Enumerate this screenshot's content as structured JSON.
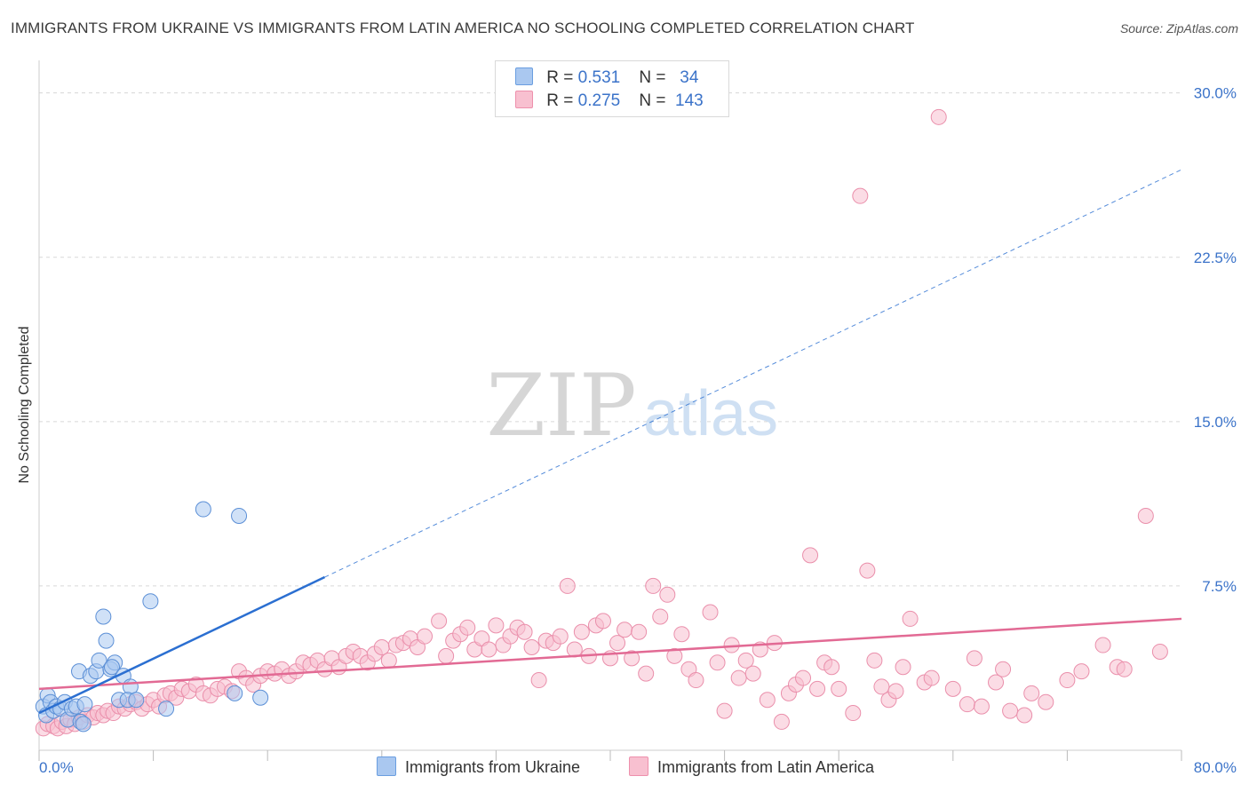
{
  "title": "IMMIGRANTS FROM UKRAINE VS IMMIGRANTS FROM LATIN AMERICA NO SCHOOLING COMPLETED CORRELATION CHART",
  "source": "Source: ZipAtlas.com",
  "watermark": {
    "zip": "ZIP",
    "atlas": "atlas"
  },
  "legend": {
    "rows": [
      {
        "r_label": "R =",
        "r_value": "0.531",
        "n_label": "N =",
        "n_value": "34",
        "color": "#aac8f0",
        "stroke": "#6a9ee0"
      },
      {
        "r_label": "R =",
        "r_value": "0.275",
        "n_label": "N =",
        "n_value": "143",
        "color": "#f8c0d0",
        "stroke": "#ee90ac"
      }
    ]
  },
  "colors": {
    "blue_fill": "#aac8f0",
    "blue_stroke": "#5b8fd6",
    "pink_fill": "#f8c0d0",
    "pink_stroke": "#ea8fab",
    "blue_line": "#2b6fd1",
    "pink_line": "#e26a94",
    "tick_label": "#3b73c9",
    "grid": "#d8d8d8"
  },
  "chart_data": {
    "type": "scatter",
    "title": "IMMIGRANTS FROM UKRAINE VS IMMIGRANTS FROM LATIN AMERICA NO SCHOOLING COMPLETED CORRELATION CHART",
    "xlabel": "",
    "ylabel": "No Schooling Completed",
    "xlim": [
      0,
      80
    ],
    "ylim": [
      0,
      31
    ],
    "x_tick_labels": [
      "0.0%",
      "80.0%"
    ],
    "y_ticks": [
      7.5,
      15.0,
      22.5,
      30.0
    ],
    "y_tick_labels": [
      "7.5%",
      "15.0%",
      "22.5%",
      "30.0%"
    ],
    "grid": true,
    "series": [
      {
        "name": "Immigrants from Ukraine",
        "R": 0.531,
        "N": 34,
        "trend": {
          "x0": 0,
          "y0": 1.7,
          "x1": 20,
          "y1": 7.9,
          "dash_to_x": 80,
          "dash_to_y": 26.5
        },
        "points": [
          [
            0.3,
            2.0
          ],
          [
            0.5,
            1.6
          ],
          [
            0.6,
            2.5
          ],
          [
            0.8,
            2.2
          ],
          [
            1.0,
            1.8
          ],
          [
            1.2,
            2.0
          ],
          [
            1.5,
            1.9
          ],
          [
            1.8,
            2.2
          ],
          [
            2.0,
            1.4
          ],
          [
            2.3,
            1.9
          ],
          [
            2.6,
            2.0
          ],
          [
            2.9,
            1.3
          ],
          [
            3.1,
            1.2
          ],
          [
            3.2,
            2.1
          ],
          [
            2.8,
            3.6
          ],
          [
            3.6,
            3.4
          ],
          [
            4.0,
            3.6
          ],
          [
            4.2,
            4.1
          ],
          [
            4.5,
            6.1
          ],
          [
            4.7,
            5.0
          ],
          [
            5.0,
            3.7
          ],
          [
            5.3,
            4.0
          ],
          [
            5.1,
            3.8
          ],
          [
            5.9,
            3.4
          ],
          [
            6.4,
            2.9
          ],
          [
            5.6,
            2.3
          ],
          [
            6.2,
            2.3
          ],
          [
            7.8,
            6.8
          ],
          [
            8.9,
            1.9
          ],
          [
            6.8,
            2.3
          ],
          [
            11.5,
            11.0
          ],
          [
            14.0,
            10.7
          ],
          [
            13.7,
            2.6
          ],
          [
            15.5,
            2.4
          ]
        ]
      },
      {
        "name": "Immigrants from Latin America",
        "R": 0.275,
        "N": 143,
        "trend": {
          "x0": 0,
          "y0": 2.8,
          "x1": 80,
          "y1": 6.0
        },
        "points": [
          [
            0.3,
            1.0
          ],
          [
            0.6,
            1.2
          ],
          [
            1.0,
            1.1
          ],
          [
            1.3,
            1.0
          ],
          [
            1.6,
            1.3
          ],
          [
            1.9,
            1.1
          ],
          [
            2.2,
            1.4
          ],
          [
            2.5,
            1.2
          ],
          [
            2.8,
            1.5
          ],
          [
            3.1,
            1.3
          ],
          [
            3.4,
            1.6
          ],
          [
            3.8,
            1.5
          ],
          [
            4.1,
            1.7
          ],
          [
            4.5,
            1.6
          ],
          [
            4.8,
            1.8
          ],
          [
            5.2,
            1.7
          ],
          [
            5.6,
            2.0
          ],
          [
            6.0,
            1.9
          ],
          [
            6.4,
            2.1
          ],
          [
            6.8,
            2.2
          ],
          [
            7.2,
            1.9
          ],
          [
            7.6,
            2.1
          ],
          [
            8.0,
            2.3
          ],
          [
            8.4,
            2.0
          ],
          [
            8.8,
            2.5
          ],
          [
            9.2,
            2.6
          ],
          [
            9.6,
            2.4
          ],
          [
            10.0,
            2.8
          ],
          [
            10.5,
            2.7
          ],
          [
            11.0,
            3.0
          ],
          [
            11.5,
            2.6
          ],
          [
            12.0,
            2.5
          ],
          [
            12.5,
            2.8
          ],
          [
            13.0,
            2.9
          ],
          [
            13.5,
            2.7
          ],
          [
            14.0,
            3.6
          ],
          [
            14.5,
            3.3
          ],
          [
            15.0,
            3.0
          ],
          [
            15.5,
            3.4
          ],
          [
            16.0,
            3.6
          ],
          [
            16.5,
            3.5
          ],
          [
            17.0,
            3.7
          ],
          [
            17.5,
            3.4
          ],
          [
            18.0,
            3.6
          ],
          [
            18.5,
            4.0
          ],
          [
            19.0,
            3.9
          ],
          [
            19.5,
            4.1
          ],
          [
            20.0,
            3.7
          ],
          [
            20.5,
            4.2
          ],
          [
            21.0,
            3.8
          ],
          [
            21.5,
            4.3
          ],
          [
            22.0,
            4.5
          ],
          [
            22.5,
            4.3
          ],
          [
            23.0,
            4.0
          ],
          [
            23.5,
            4.4
          ],
          [
            24.0,
            4.7
          ],
          [
            24.5,
            4.1
          ],
          [
            25.0,
            4.8
          ],
          [
            25.5,
            4.9
          ],
          [
            26.0,
            5.1
          ],
          [
            26.5,
            4.7
          ],
          [
            27.0,
            5.2
          ],
          [
            28.0,
            5.9
          ],
          [
            28.5,
            4.3
          ],
          [
            29.0,
            5.0
          ],
          [
            29.5,
            5.3
          ],
          [
            30.0,
            5.6
          ],
          [
            30.5,
            4.6
          ],
          [
            31.0,
            5.1
          ],
          [
            31.5,
            4.6
          ],
          [
            32.0,
            5.7
          ],
          [
            32.5,
            4.8
          ],
          [
            33.0,
            5.2
          ],
          [
            33.5,
            5.6
          ],
          [
            34.0,
            5.4
          ],
          [
            34.5,
            4.7
          ],
          [
            35.0,
            3.2
          ],
          [
            35.5,
            5.0
          ],
          [
            36.0,
            4.9
          ],
          [
            36.5,
            5.2
          ],
          [
            37.0,
            7.5
          ],
          [
            37.5,
            4.6
          ],
          [
            38.0,
            5.4
          ],
          [
            38.5,
            4.3
          ],
          [
            39.0,
            5.7
          ],
          [
            39.5,
            5.9
          ],
          [
            40.0,
            4.2
          ],
          [
            40.5,
            4.9
          ],
          [
            41.0,
            5.5
          ],
          [
            41.5,
            4.2
          ],
          [
            42.0,
            5.4
          ],
          [
            42.5,
            3.5
          ],
          [
            43.0,
            7.5
          ],
          [
            43.5,
            6.1
          ],
          [
            44.0,
            7.1
          ],
          [
            44.5,
            4.3
          ],
          [
            45.0,
            5.3
          ],
          [
            45.5,
            3.7
          ],
          [
            46.0,
            3.2
          ],
          [
            47.0,
            6.3
          ],
          [
            47.5,
            4.0
          ],
          [
            48.0,
            1.8
          ],
          [
            48.5,
            4.8
          ],
          [
            49.0,
            3.3
          ],
          [
            49.5,
            4.1
          ],
          [
            50.0,
            3.5
          ],
          [
            50.5,
            4.6
          ],
          [
            51.0,
            2.3
          ],
          [
            51.5,
            4.9
          ],
          [
            52.0,
            1.3
          ],
          [
            52.5,
            2.6
          ],
          [
            53.0,
            3.0
          ],
          [
            53.5,
            3.3
          ],
          [
            54.0,
            8.9
          ],
          [
            54.5,
            2.8
          ],
          [
            55.0,
            4.0
          ],
          [
            55.5,
            3.8
          ],
          [
            56.0,
            2.8
          ],
          [
            57.0,
            1.7
          ],
          [
            57.5,
            25.3
          ],
          [
            58.0,
            8.2
          ],
          [
            58.5,
            4.1
          ],
          [
            59.0,
            2.9
          ],
          [
            59.5,
            2.3
          ],
          [
            60.0,
            2.7
          ],
          [
            60.5,
            3.8
          ],
          [
            61.0,
            6.0
          ],
          [
            62.0,
            3.1
          ],
          [
            62.5,
            3.3
          ],
          [
            63.0,
            28.9
          ],
          [
            64.0,
            2.8
          ],
          [
            65.0,
            2.1
          ],
          [
            65.5,
            4.2
          ],
          [
            66.0,
            2.0
          ],
          [
            67.0,
            3.1
          ],
          [
            67.5,
            3.7
          ],
          [
            68.0,
            1.8
          ],
          [
            69.0,
            1.6
          ],
          [
            69.5,
            2.6
          ],
          [
            70.5,
            2.2
          ],
          [
            72.0,
            3.2
          ],
          [
            73.0,
            3.6
          ],
          [
            74.5,
            4.8
          ],
          [
            75.5,
            3.8
          ],
          [
            76.0,
            3.7
          ],
          [
            77.5,
            10.7
          ],
          [
            78.5,
            4.5
          ]
        ]
      }
    ]
  },
  "bottom_legend": [
    {
      "label": "Immigrants from Ukraine",
      "color": "#aac8f0"
    },
    {
      "label": "Immigrants from Latin America",
      "color": "#f8c0d0"
    }
  ]
}
